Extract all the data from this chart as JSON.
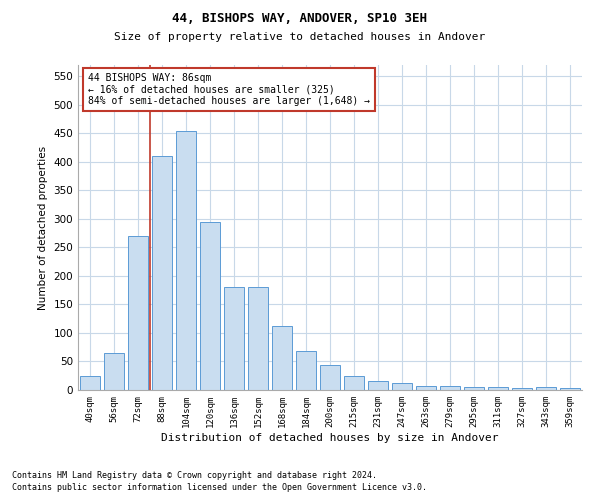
{
  "title1": "44, BISHOPS WAY, ANDOVER, SP10 3EH",
  "title2": "Size of property relative to detached houses in Andover",
  "xlabel": "Distribution of detached houses by size in Andover",
  "ylabel": "Number of detached properties",
  "categories": [
    "40sqm",
    "56sqm",
    "72sqm",
    "88sqm",
    "104sqm",
    "120sqm",
    "136sqm",
    "152sqm",
    "168sqm",
    "184sqm",
    "200sqm",
    "215sqm",
    "231sqm",
    "247sqm",
    "263sqm",
    "279sqm",
    "295sqm",
    "311sqm",
    "327sqm",
    "343sqm",
    "359sqm"
  ],
  "values": [
    25,
    65,
    270,
    410,
    455,
    295,
    180,
    180,
    112,
    68,
    44,
    25,
    15,
    13,
    7,
    7,
    6,
    5,
    4,
    5,
    4
  ],
  "bar_color": "#c9ddf0",
  "bar_edge_color": "#5b9bd5",
  "vline_color": "#c0392b",
  "annotation_title": "44 BISHOPS WAY: 86sqm",
  "annotation_line1": "← 16% of detached houses are smaller (325)",
  "annotation_line2": "84% of semi-detached houses are larger (1,648) →",
  "annotation_box_color": "#c0392b",
  "ylim": [
    0,
    570
  ],
  "yticks": [
    0,
    50,
    100,
    150,
    200,
    250,
    300,
    350,
    400,
    450,
    500,
    550
  ],
  "footnote1": "Contains HM Land Registry data © Crown copyright and database right 2024.",
  "footnote2": "Contains public sector information licensed under the Open Government Licence v3.0.",
  "background_color": "#ffffff",
  "grid_color": "#c8d8e8"
}
